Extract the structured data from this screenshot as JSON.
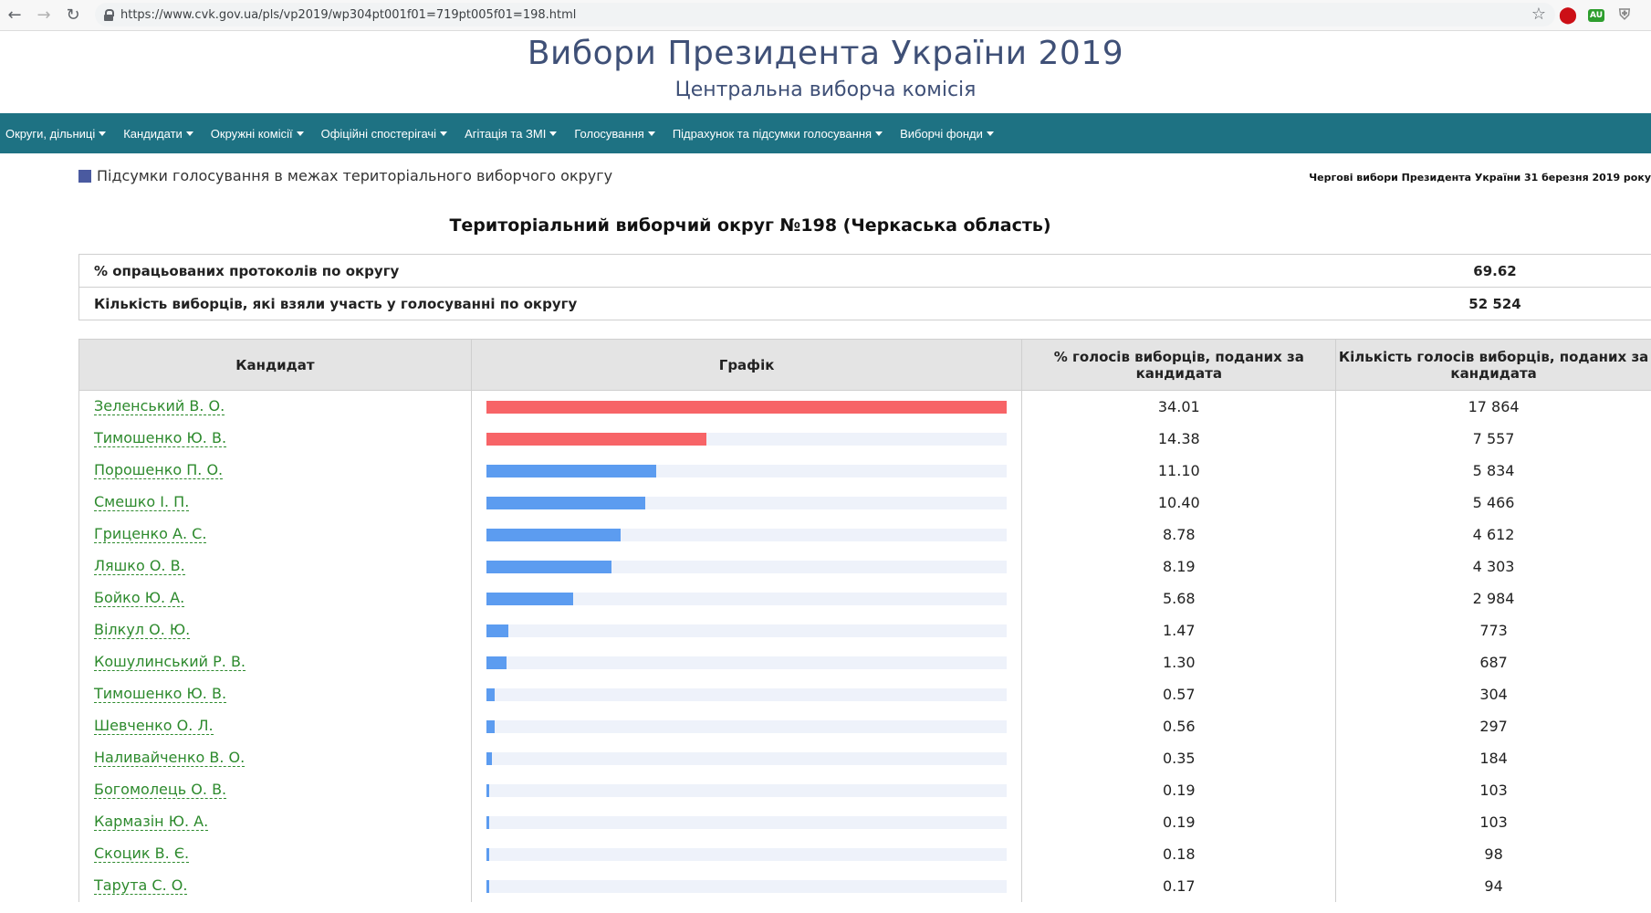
{
  "browser": {
    "url": "https://www.cvk.gov.ua/pls/vp2019/wp304pt001f01=719pt005f01=198.html",
    "extensions": [
      "opera-icon",
      "au-icon",
      "shield-icon"
    ]
  },
  "header": {
    "title": "Вибори Президента України 2019",
    "subtitle": "Центральна виборча комісія"
  },
  "menu": {
    "items": [
      {
        "label": "Округи, дільниці"
      },
      {
        "label": "Кандидати"
      },
      {
        "label": "Окружні комісії"
      },
      {
        "label": "Офіційні спостерігачі"
      },
      {
        "label": "Агітація та ЗМІ"
      },
      {
        "label": "Голосування"
      },
      {
        "label": "Підрахунок та підсумки голосування"
      },
      {
        "label": "Виборчі фонди"
      }
    ]
  },
  "section": {
    "title": "Підсумки голосування в межах територіального виборчого округу",
    "election": "Чергові вибори Президента України 31 березня 2019 року"
  },
  "district_title": "Територіальний виборчий округ №198 (Черкаська область)",
  "summary": {
    "rows": [
      {
        "label": "% опрацьованих протоколів по округу",
        "value": "69.62"
      },
      {
        "label": "Кількість виборців, які взяли участь у голосуванні по округу",
        "value": "52 524"
      }
    ]
  },
  "results": {
    "headers": {
      "candidate": "Кандидат",
      "chart": "Графік",
      "percent": "% голосів виборців, поданих за кандидата",
      "votes": "Кількість голосів виборців, поданих за кандидата"
    },
    "bar_colors": {
      "top": "#f76467",
      "other": "#5c9cf0",
      "track": "#eef2fa"
    },
    "rows": [
      {
        "name": "Зеленський В. О.",
        "percent": "34.01",
        "votes": "17 864",
        "share": 34.01,
        "top": true
      },
      {
        "name": "Тимошенко Ю. В.",
        "percent": "14.38",
        "votes": "7 557",
        "share": 14.38,
        "top": true
      },
      {
        "name": "Порошенко П. О.",
        "percent": "11.10",
        "votes": "5 834",
        "share": 11.1,
        "top": false
      },
      {
        "name": "Смешко І. П.",
        "percent": "10.40",
        "votes": "5 466",
        "share": 10.4,
        "top": false
      },
      {
        "name": "Гриценко А. С.",
        "percent": "8.78",
        "votes": "4 612",
        "share": 8.78,
        "top": false
      },
      {
        "name": "Ляшко О. В.",
        "percent": "8.19",
        "votes": "4 303",
        "share": 8.19,
        "top": false
      },
      {
        "name": "Бойко Ю. А.",
        "percent": "5.68",
        "votes": "2 984",
        "share": 5.68,
        "top": false
      },
      {
        "name": "Вілкул О. Ю.",
        "percent": "1.47",
        "votes": "773",
        "share": 1.47,
        "top": false
      },
      {
        "name": "Кошулинський Р. В.",
        "percent": "1.30",
        "votes": "687",
        "share": 1.3,
        "top": false
      },
      {
        "name": "Тимошенко Ю. В.",
        "percent": "0.57",
        "votes": "304",
        "share": 0.57,
        "top": false
      },
      {
        "name": "Шевченко О. Л.",
        "percent": "0.56",
        "votes": "297",
        "share": 0.56,
        "top": false
      },
      {
        "name": "Наливайченко В. О.",
        "percent": "0.35",
        "votes": "184",
        "share": 0.35,
        "top": false
      },
      {
        "name": "Богомолець О. В.",
        "percent": "0.19",
        "votes": "103",
        "share": 0.19,
        "top": false
      },
      {
        "name": "Кармазін Ю. А.",
        "percent": "0.19",
        "votes": "103",
        "share": 0.19,
        "top": false
      },
      {
        "name": "Скоцик В. Є.",
        "percent": "0.18",
        "votes": "98",
        "share": 0.18,
        "top": false
      },
      {
        "name": "Тарута С. О.",
        "percent": "0.17",
        "votes": "94",
        "share": 0.17,
        "top": false
      }
    ]
  }
}
